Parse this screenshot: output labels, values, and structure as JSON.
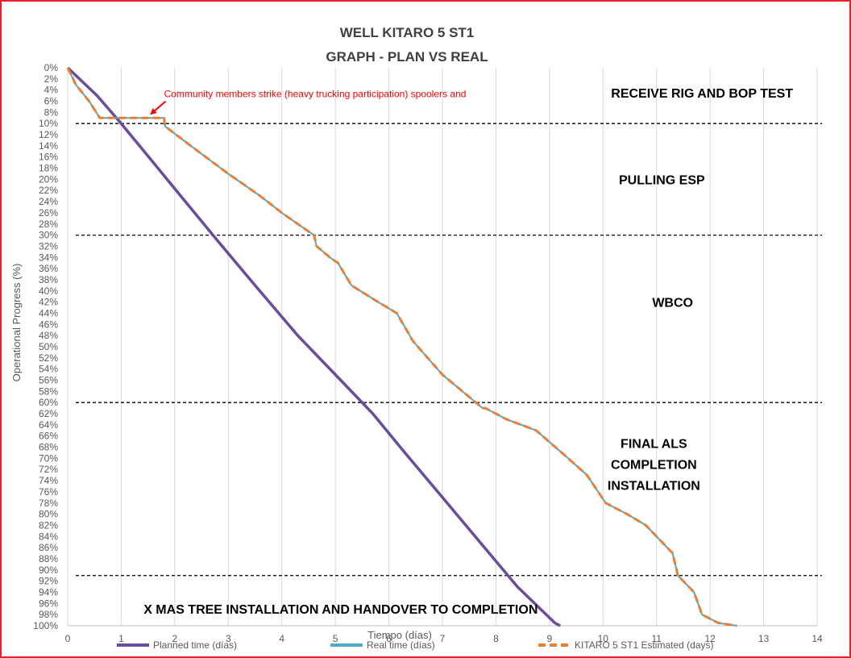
{
  "chart_data": {
    "type": "line",
    "title": "WELL KITARO 5 ST1",
    "subtitle": "GRAPH  - PLAN VS REAL",
    "xlabel": "Tiempo (días)",
    "ylabel": "Operational Progress (%)",
    "xlim": [
      0,
      14
    ],
    "ylim": [
      0,
      100
    ],
    "y_inverted": true,
    "grid": "vertical",
    "x_ticks": [
      0,
      1,
      2,
      3,
      4,
      5,
      6,
      7,
      8,
      9,
      10,
      11,
      12,
      13,
      14
    ],
    "y_ticks": [
      0,
      2,
      4,
      6,
      8,
      10,
      12,
      14,
      16,
      18,
      20,
      22,
      24,
      26,
      28,
      30,
      32,
      34,
      36,
      38,
      40,
      42,
      44,
      46,
      48,
      50,
      52,
      54,
      56,
      58,
      60,
      62,
      64,
      66,
      68,
      70,
      72,
      74,
      76,
      78,
      80,
      82,
      84,
      86,
      88,
      90,
      92,
      94,
      96,
      98,
      100
    ],
    "y_tick_suffix": "%",
    "series": [
      {
        "name": "Planned time (días)",
        "color": "#6a4c9c",
        "style": "solid",
        "x": [
          0,
          0.55,
          1.0,
          1.6,
          2.2,
          2.8,
          3.5,
          4.3,
          5.1,
          5.7,
          6.3,
          7.0,
          7.7,
          8.4,
          9.1,
          9.2
        ],
        "y": [
          0,
          5,
          10,
          17,
          24,
          31,
          39,
          48,
          56,
          62,
          69,
          77,
          85,
          93,
          99.5,
          100
        ]
      },
      {
        "name": "Real time (días)",
        "color": "#4bacc6",
        "style": "solid",
        "x": [
          0,
          0.15,
          0.4,
          0.6,
          1.0,
          1.5,
          1.8,
          1.82,
          2.3,
          3.0,
          3.6,
          4.0,
          4.3,
          4.6,
          4.65,
          4.9,
          5.05,
          5.3,
          5.8,
          6.15,
          6.45,
          7.0,
          7.75,
          7.8,
          8.2,
          8.75,
          9.35,
          9.7,
          10.05,
          10.45,
          10.8,
          11.3,
          11.4,
          11.7,
          11.85,
          12.15,
          12.5
        ],
        "y": [
          0,
          3,
          6,
          9,
          9,
          9,
          9,
          10.5,
          14,
          19,
          23,
          26,
          28,
          30,
          32,
          34,
          35,
          39,
          42,
          44,
          49,
          55,
          61,
          61,
          63,
          65,
          70,
          73,
          78,
          80,
          82,
          87,
          91,
          94,
          98,
          99.5,
          100
        ]
      },
      {
        "name": "KITARO 5 ST1 Estimated (days)",
        "color": "#ed7d31",
        "style": "dashed",
        "x": [
          0,
          0.15,
          0.4,
          0.6,
          1.0,
          1.5,
          1.8,
          1.82,
          2.3,
          3.0,
          3.6,
          4.0,
          4.3,
          4.6,
          4.65,
          4.9,
          5.05,
          5.3,
          5.8,
          6.15,
          6.45,
          7.0,
          7.75,
          7.8,
          8.2,
          8.75,
          9.35,
          9.7,
          10.05,
          10.45,
          10.8,
          11.3,
          11.4,
          11.7,
          11.85,
          12.15,
          12.5
        ],
        "y": [
          0,
          3,
          6,
          9,
          9,
          9,
          9,
          10.5,
          14,
          19,
          23,
          26,
          28,
          30,
          32,
          34,
          35,
          39,
          42,
          44,
          49,
          55,
          61,
          61,
          63,
          65,
          70,
          73,
          78,
          80,
          82,
          87,
          91,
          94,
          98,
          99.5,
          100
        ]
      }
    ],
    "phase_lines": [
      10,
      30,
      60,
      91
    ],
    "phases": [
      {
        "label": "RECEIVE RIG AND BOP TEST",
        "lines": [
          "RECEIVE RIG AND BOP TEST"
        ],
        "x": 11.85,
        "y": 4.5
      },
      {
        "label": "PULLING ESP",
        "lines": [
          "PULLING ESP"
        ],
        "x": 11.1,
        "y": 20
      },
      {
        "label": "WBCO",
        "lines": [
          "WBCO"
        ],
        "x": 11.3,
        "y": 42
      },
      {
        "label": "FINAL ALS COMPLETION INSTALLATION",
        "lines": [
          "FINAL ALS",
          "COMPLETION",
          "INSTALLATION"
        ],
        "x": 10.95,
        "y": 71
      },
      {
        "label": "X MAS TREE INSTALLATION AND HANDOVER TO COMPLETION",
        "lines": [
          "X MAS TREE INSTALLATION AND HANDOVER TO COMPLETION"
        ],
        "x": 5.1,
        "y": 97
      }
    ],
    "annotations": [
      {
        "text": "Community members strike (heavy trucking participation) spoolers and",
        "x": 1.8,
        "y": 5.3,
        "arrow_to": [
          1.5,
          8.8
        ],
        "color": "#ff0000"
      }
    ]
  }
}
